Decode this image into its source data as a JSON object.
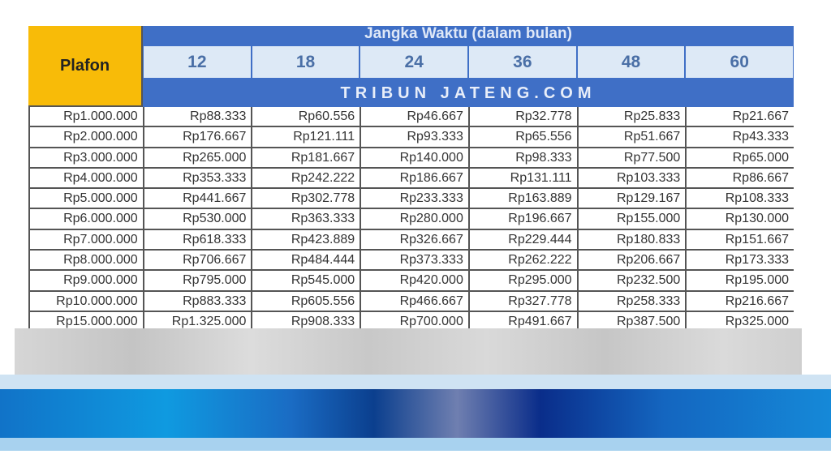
{
  "table": {
    "plafon_label": "Plafon",
    "jangka_label": "Jangka Waktu (dalam bulan)",
    "watermark": "TRIBUN JATENG.COM",
    "terms": [
      "12",
      "18",
      "24",
      "36",
      "48",
      "60"
    ],
    "rows": [
      [
        "Rp1.000.000",
        "Rp88.333",
        "Rp60.556",
        "Rp46.667",
        "Rp32.778",
        "Rp25.833",
        "Rp21.667"
      ],
      [
        "Rp2.000.000",
        "Rp176.667",
        "Rp121.111",
        "Rp93.333",
        "Rp65.556",
        "Rp51.667",
        "Rp43.333"
      ],
      [
        "Rp3.000.000",
        "Rp265.000",
        "Rp181.667",
        "Rp140.000",
        "Rp98.333",
        "Rp77.500",
        "Rp65.000"
      ],
      [
        "Rp4.000.000",
        "Rp353.333",
        "Rp242.222",
        "Rp186.667",
        "Rp131.111",
        "Rp103.333",
        "Rp86.667"
      ],
      [
        "Rp5.000.000",
        "Rp441.667",
        "Rp302.778",
        "Rp233.333",
        "Rp163.889",
        "Rp129.167",
        "Rp108.333"
      ],
      [
        "Rp6.000.000",
        "Rp530.000",
        "Rp363.333",
        "Rp280.000",
        "Rp196.667",
        "Rp155.000",
        "Rp130.000"
      ],
      [
        "Rp7.000.000",
        "Rp618.333",
        "Rp423.889",
        "Rp326.667",
        "Rp229.444",
        "Rp180.833",
        "Rp151.667"
      ],
      [
        "Rp8.000.000",
        "Rp706.667",
        "Rp484.444",
        "Rp373.333",
        "Rp262.222",
        "Rp206.667",
        "Rp173.333"
      ],
      [
        "Rp9.000.000",
        "Rp795.000",
        "Rp545.000",
        "Rp420.000",
        "Rp295.000",
        "Rp232.500",
        "Rp195.000"
      ],
      [
        "Rp10.000.000",
        "Rp883.333",
        "Rp605.556",
        "Rp466.667",
        "Rp327.778",
        "Rp258.333",
        "Rp216.667"
      ],
      [
        "Rp15.000.000",
        "Rp1.325.000",
        "Rp908.333",
        "Rp700.000",
        "Rp491.667",
        "Rp387.500",
        "Rp325.000"
      ]
    ]
  },
  "colors": {
    "header_blue": "#3f6fc6",
    "plafon_yellow": "#f8bb08",
    "term_cell": "#dde9f6"
  }
}
